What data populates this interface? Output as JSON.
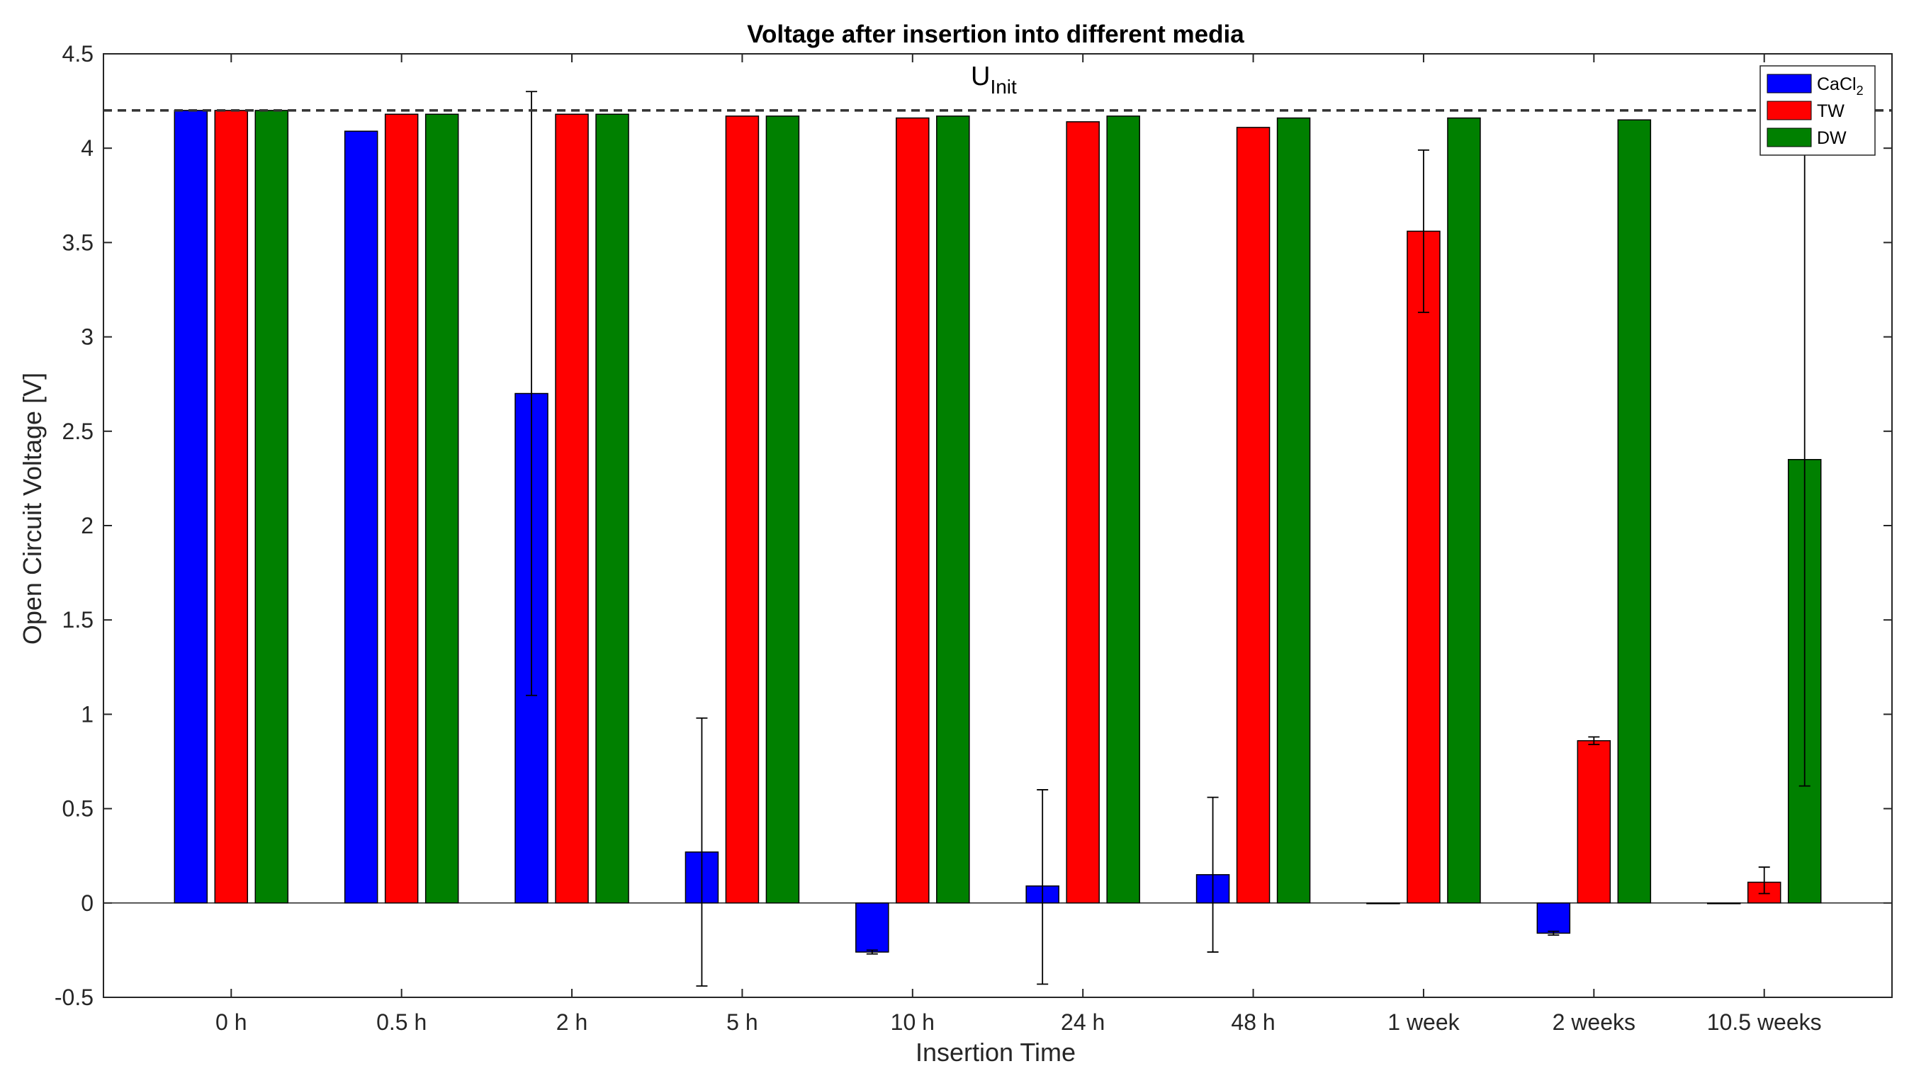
{
  "chart_data": {
    "type": "bar",
    "title": "Voltage after insertion into different media",
    "xlabel": "Insertion Time",
    "ylabel": "Open Circuit Voltage [V]",
    "ylim": [
      -0.5,
      4.5
    ],
    "yticks": [
      -0.5,
      0,
      0.5,
      1,
      1.5,
      2,
      2.5,
      3,
      3.5,
      4,
      4.5
    ],
    "ytick_labels": [
      "-0.5",
      "0",
      "0.5",
      "1",
      "1.5",
      "2",
      "2.5",
      "3",
      "3.5",
      "4",
      "4.5"
    ],
    "categories": [
      "0 h",
      "0.5 h",
      "2 h",
      "5 h",
      "10 h",
      "24 h",
      "48 h",
      "1 week",
      "2 weeks",
      "10.5 weeks"
    ],
    "grid": false,
    "legend_position": "top-right",
    "reference_line": {
      "value": 4.2,
      "label_main": "U",
      "label_sub": "Init",
      "style": "dashed"
    },
    "series": [
      {
        "name": "CaCl",
        "name_sub": "2",
        "color": "#0000ff",
        "values": [
          4.2,
          4.09,
          2.7,
          0.27,
          -0.26,
          0.09,
          0.15,
          0.0,
          -0.16,
          0.0
        ],
        "err_low": [
          4.2,
          4.09,
          1.1,
          -0.44,
          -0.27,
          -0.43,
          -0.26,
          0.0,
          -0.17,
          0.0
        ],
        "err_high": [
          4.2,
          4.09,
          4.3,
          0.98,
          -0.25,
          0.6,
          0.56,
          0.0,
          -0.15,
          0.0
        ]
      },
      {
        "name": "TW",
        "color": "#ff0000",
        "values": [
          4.2,
          4.18,
          4.18,
          4.17,
          4.16,
          4.14,
          4.11,
          3.56,
          0.86,
          0.11
        ],
        "err_low": [
          4.2,
          4.18,
          4.18,
          4.17,
          4.16,
          4.14,
          4.11,
          3.13,
          0.84,
          0.05
        ],
        "err_high": [
          4.2,
          4.18,
          4.18,
          4.17,
          4.16,
          4.14,
          4.11,
          3.99,
          0.88,
          0.19
        ]
      },
      {
        "name": "DW",
        "color": "#008000",
        "values": [
          4.2,
          4.18,
          4.18,
          4.17,
          4.17,
          4.17,
          4.16,
          4.16,
          4.15,
          2.35
        ],
        "err_low": [
          4.2,
          4.18,
          4.18,
          4.17,
          4.17,
          4.17,
          4.16,
          4.16,
          4.15,
          0.62
        ],
        "err_high": [
          4.2,
          4.18,
          4.18,
          4.17,
          4.17,
          4.17,
          4.16,
          4.16,
          4.15,
          4.1
        ]
      }
    ]
  }
}
